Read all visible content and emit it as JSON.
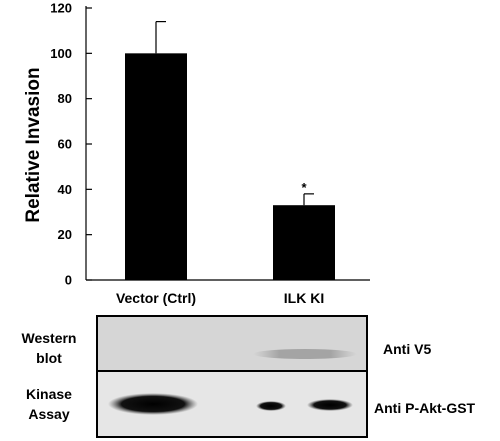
{
  "chart_data": {
    "type": "bar",
    "categories": [
      "Vector (Ctrl)",
      "ILK KI"
    ],
    "values": [
      100,
      33
    ],
    "errors": [
      14,
      5
    ],
    "annotations": [
      {
        "category": "ILK KI",
        "text": "*"
      }
    ],
    "ylabel": "Relative Invasion",
    "xlabel": "",
    "ylim": [
      0,
      120
    ],
    "yticks": [
      0,
      20,
      40,
      60,
      80,
      100,
      120
    ],
    "bar_color": "#000000",
    "grid": false
  },
  "blot": {
    "western": {
      "row_label_line1": "Western",
      "row_label_line2": "blot",
      "antibody": "Anti V5"
    },
    "kinase": {
      "row_label_line1": "Kinase",
      "row_label_line2": "Assay",
      "antibody": "Anti P-Akt-GST"
    }
  }
}
